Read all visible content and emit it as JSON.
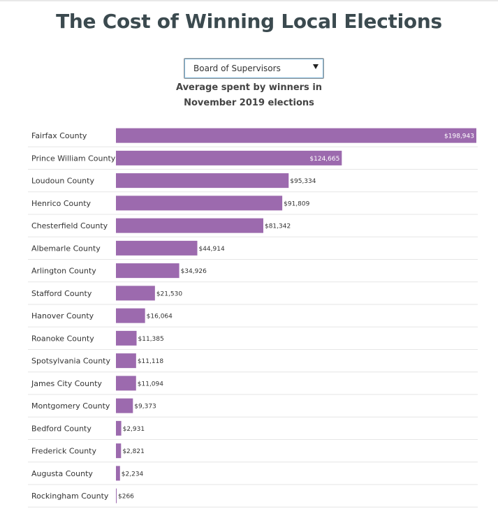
{
  "page": {
    "title": "The Cost of Winning Local Elections",
    "dropdown": {
      "selected": "Board of Supervisors"
    },
    "subtitle_line1": "Average spent by winners in",
    "subtitle_line2": "November 2019 elections"
  },
  "colors": {
    "bar": "#9c6aae",
    "separator": "#e6e6e6"
  },
  "chart_data": {
    "type": "bar",
    "orientation": "horizontal",
    "categories": [
      "Fairfax County",
      "Prince William County",
      "Loudoun County",
      "Henrico County",
      "Chesterfield County",
      "Albemarle County",
      "Arlington County",
      "Stafford County",
      "Hanover County",
      "Roanoke County",
      "Spotsylvania County",
      "James City County",
      "Montgomery County",
      "Bedford County",
      "Frederick County",
      "Augusta County",
      "Rockingham County"
    ],
    "values": [
      198943,
      124665,
      95334,
      91809,
      81342,
      44914,
      34926,
      21530,
      16064,
      11385,
      11118,
      11094,
      9373,
      2931,
      2821,
      2234,
      266
    ],
    "labels": [
      "$198,943",
      "$124,665",
      "$95,334",
      "$91,809",
      "$81,342",
      "$44,914",
      "$34,926",
      "$21,530",
      "$16,064",
      "$11,385",
      "$11,118",
      "$11,094",
      "$9,373",
      "$2,931",
      "$2,821",
      "$2,234",
      "$266"
    ],
    "xlim": [
      0,
      198943
    ],
    "grid": false,
    "legend": "none"
  }
}
